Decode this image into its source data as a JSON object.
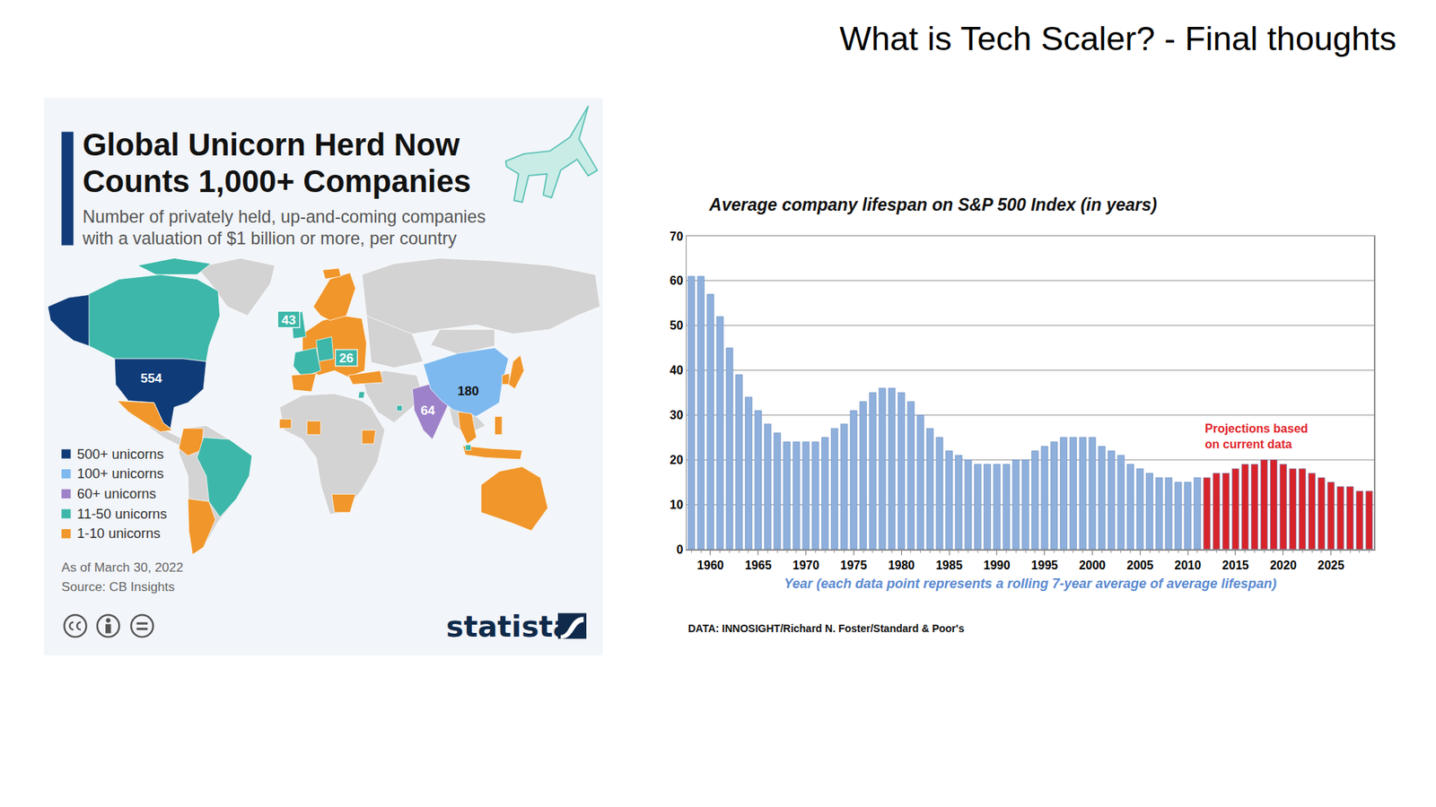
{
  "slide_title": "What is Tech Scaler? - Final thoughts",
  "infographic": {
    "title_lines": [
      "Global Unicorn Herd Now",
      "Counts 1,000+ Companies"
    ],
    "subtitle_lines": [
      "Number of privately held, up-and-coming companies",
      "with a valuation of $1 billion or more, per country"
    ],
    "legend_items": [
      {
        "label": "500+ unicorns",
        "color": "#0f3b78"
      },
      {
        "label": "100+ unicorns",
        "color": "#7db9ef"
      },
      {
        "label": "60+ unicorns",
        "color": "#9d81c9"
      },
      {
        "label": "11-50 unicorns",
        "color": "#3db7a9"
      },
      {
        "label": "1-10 unicorns",
        "color": "#f0962b"
      }
    ],
    "map_labels": [
      {
        "value": 554,
        "color": "#0f3b78"
      },
      {
        "value": 180,
        "color": "#7db9ef"
      },
      {
        "value": 64,
        "color": "#9d81c9"
      },
      {
        "value": 43,
        "color": "#3db7a9"
      },
      {
        "value": 26,
        "color": "#3db7a9"
      }
    ],
    "note_lines": [
      "As of March 30, 2022",
      "Source: CB Insights"
    ],
    "brand": "statista"
  },
  "chart_data": {
    "type": "bar",
    "title": "Average company lifespan on S&P 500 Index (in years)",
    "x_label": "Year (each data point represents a rolling 7-year average of average lifespan)",
    "source": "DATA: INNOSIGHT/Richard N. Foster/Standard & Poor's",
    "annotation_lines": [
      "Projections based",
      "on current data"
    ],
    "x": [
      1958,
      1959,
      1960,
      1961,
      1962,
      1963,
      1964,
      1965,
      1966,
      1967,
      1968,
      1969,
      1970,
      1971,
      1972,
      1973,
      1974,
      1975,
      1976,
      1977,
      1978,
      1979,
      1980,
      1981,
      1982,
      1983,
      1984,
      1985,
      1986,
      1987,
      1988,
      1989,
      1990,
      1991,
      1992,
      1993,
      1994,
      1995,
      1996,
      1997,
      1998,
      1999,
      2000,
      2001,
      2002,
      2003,
      2004,
      2005,
      2006,
      2007,
      2008,
      2009,
      2010,
      2011,
      2012,
      2013,
      2014,
      2015,
      2016,
      2017,
      2018,
      2019,
      2020,
      2021,
      2022,
      2023,
      2024,
      2025,
      2026,
      2027,
      2028,
      2029
    ],
    "values": [
      61,
      61,
      57,
      52,
      45,
      39,
      34,
      31,
      28,
      26,
      24,
      24,
      24,
      24,
      25,
      27,
      28,
      31,
      33,
      35,
      36,
      36,
      35,
      33,
      30,
      27,
      25,
      22,
      21,
      20,
      19,
      19,
      19,
      19,
      20,
      20,
      22,
      23,
      24,
      25,
      25,
      25,
      25,
      23,
      22,
      21,
      19,
      18,
      17,
      16,
      16,
      15,
      15,
      16,
      16,
      17,
      17,
      18,
      19,
      19,
      20,
      20,
      19,
      18,
      18,
      17,
      16,
      15,
      14,
      14,
      13,
      13
    ],
    "colors": [
      "#8fb0dc",
      "#8fb0dc",
      "#8fb0dc",
      "#8fb0dc",
      "#8fb0dc",
      "#8fb0dc",
      "#8fb0dc",
      "#8fb0dc",
      "#8fb0dc",
      "#8fb0dc",
      "#8fb0dc",
      "#8fb0dc",
      "#8fb0dc",
      "#8fb0dc",
      "#8fb0dc",
      "#8fb0dc",
      "#8fb0dc",
      "#8fb0dc",
      "#8fb0dc",
      "#8fb0dc",
      "#8fb0dc",
      "#8fb0dc",
      "#8fb0dc",
      "#8fb0dc",
      "#8fb0dc",
      "#8fb0dc",
      "#8fb0dc",
      "#8fb0dc",
      "#8fb0dc",
      "#8fb0dc",
      "#8fb0dc",
      "#8fb0dc",
      "#8fb0dc",
      "#8fb0dc",
      "#8fb0dc",
      "#8fb0dc",
      "#8fb0dc",
      "#8fb0dc",
      "#8fb0dc",
      "#8fb0dc",
      "#8fb0dc",
      "#8fb0dc",
      "#8fb0dc",
      "#8fb0dc",
      "#8fb0dc",
      "#8fb0dc",
      "#8fb0dc",
      "#8fb0dc",
      "#8fb0dc",
      "#8fb0dc",
      "#8fb0dc",
      "#8fb0dc",
      "#8fb0dc",
      "#8fb0dc",
      "#d8232a",
      "#d8232a",
      "#d8232a",
      "#d8232a",
      "#d8232a",
      "#d8232a",
      "#d8232a",
      "#d8232a",
      "#d8232a",
      "#d8232a",
      "#d8232a",
      "#d8232a",
      "#d8232a",
      "#d8232a",
      "#d8232a",
      "#d8232a",
      "#d8232a",
      "#d8232a"
    ],
    "xlim": [
      1957.5,
      2029.5
    ],
    "xticks": [
      1960,
      1965,
      1970,
      1975,
      1980,
      1985,
      1990,
      1995,
      2000,
      2005,
      2010,
      2015,
      2020,
      2025
    ],
    "ylim": [
      0,
      70
    ],
    "yticks": [
      0,
      10,
      20,
      30,
      40,
      50,
      60,
      70
    ],
    "grid": true
  }
}
